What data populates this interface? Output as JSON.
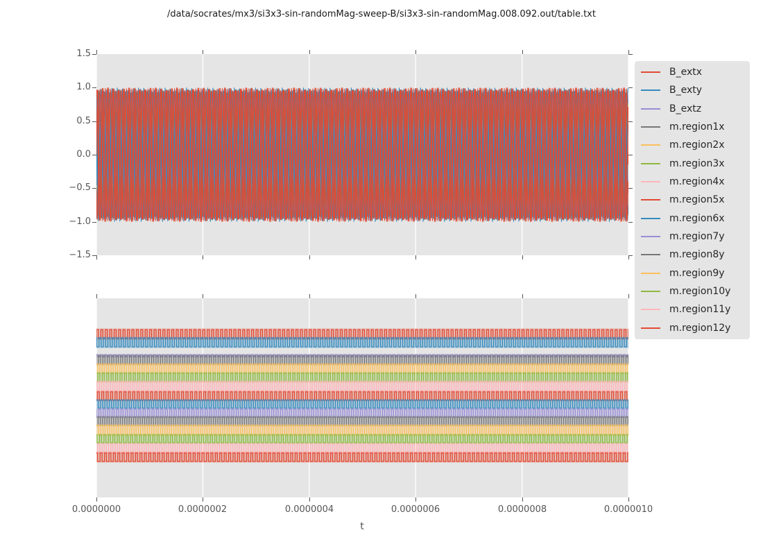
{
  "title": "/data/socrates/mx3/si3x3-sin-randomMag-sweep-B/si3x3-sin-randomMag.008.092.out/table.txt",
  "palette": [
    "#E24A33",
    "#348ABD",
    "#988ED5",
    "#777777",
    "#FBC15E",
    "#8EBA42",
    "#FFB5B8"
  ],
  "figure_style": {
    "axes_background": "#e5e5e5",
    "grid_color": "#ffffff",
    "tick_color": "#555555",
    "text_color": "#262626"
  },
  "legend": {
    "items": [
      {
        "label": "B_extx",
        "color": "#E24A33"
      },
      {
        "label": "B_exty",
        "color": "#348ABD"
      },
      {
        "label": "B_extz",
        "color": "#988ED5"
      },
      {
        "label": "m.region1x",
        "color": "#777777"
      },
      {
        "label": "m.region2x",
        "color": "#FBC15E"
      },
      {
        "label": "m.region3x",
        "color": "#8EBA42"
      },
      {
        "label": "m.region4x",
        "color": "#FFB5B8"
      },
      {
        "label": "m.region5x",
        "color": "#E24A33"
      },
      {
        "label": "m.region6x",
        "color": "#348ABD"
      },
      {
        "label": "m.region7y",
        "color": "#988ED5"
      },
      {
        "label": "m.region8y",
        "color": "#777777"
      },
      {
        "label": "m.region9y",
        "color": "#FBC15E"
      },
      {
        "label": "m.region10y",
        "color": "#8EBA42"
      },
      {
        "label": "m.region11y",
        "color": "#FFB5B8"
      },
      {
        "label": "m.region12y",
        "color": "#E24A33"
      }
    ]
  },
  "chart_data": [
    {
      "type": "line",
      "subplot": "top",
      "x_range": [
        0,
        1e-06
      ],
      "y_range": [
        -1.5,
        1.5
      ],
      "ytick_labels": [
        "1.5",
        "1.0",
        "0.5",
        "0.0",
        "−0.5",
        "−1.0",
        "−1.5"
      ],
      "grid": "vertical-only",
      "series": [
        {
          "name": "B_extx",
          "color": "#E24A33",
          "wave": "sine",
          "amplitude": 1.0,
          "cycles": 100,
          "phase": 0.0
        },
        {
          "name": "B_exty",
          "color": "#348ABD",
          "wave": "sine",
          "amplitude": 1.0,
          "cycles": 100,
          "phase": 2.1
        },
        {
          "name": "B_extz",
          "color": "#988ED5",
          "wave": "sine",
          "amplitude": 0.95,
          "cycles": 100,
          "phase": 4.2
        },
        {
          "name": "m.region1x",
          "color": "#777777",
          "wave": "sine",
          "amplitude": 0.97,
          "cycles": 100,
          "phase": 0.9
        },
        {
          "name": "m.region2x",
          "color": "#FBC15E",
          "wave": "sine",
          "amplitude": 0.78,
          "cycles": 100,
          "phase": 3.0
        },
        {
          "name": "m.region3x",
          "color": "#8EBA42",
          "wave": "sine",
          "amplitude": 0.9,
          "cycles": 100,
          "phase": 5.1
        },
        {
          "name": "m.region4x",
          "color": "#FFB5B8",
          "wave": "sine",
          "amplitude": 0.86,
          "cycles": 100,
          "phase": 1.6
        },
        {
          "name": "m.region5x",
          "color": "#E24A33",
          "wave": "sine",
          "amplitude": 0.99,
          "cycles": 100,
          "phase": 3.7
        },
        {
          "name": "m.region6x",
          "color": "#348ABD",
          "wave": "sine",
          "amplitude": 0.985,
          "cycles": 100,
          "phase": 5.8
        },
        {
          "name": "m.region7y",
          "color": "#988ED5",
          "wave": "sine",
          "amplitude": 0.95,
          "cycles": 100,
          "phase": 2.6
        },
        {
          "name": "m.region8y",
          "color": "#777777",
          "wave": "sine",
          "amplitude": 0.96,
          "cycles": 100,
          "phase": 4.7
        },
        {
          "name": "m.region9y",
          "color": "#FBC15E",
          "wave": "sine",
          "amplitude": 0.76,
          "cycles": 100,
          "phase": 0.4
        },
        {
          "name": "m.region10y",
          "color": "#8EBA42",
          "wave": "sine",
          "amplitude": 0.89,
          "cycles": 100,
          "phase": 2.9
        },
        {
          "name": "m.region11y",
          "color": "#FFB5B8",
          "wave": "sine",
          "amplitude": 0.87,
          "cycles": 100,
          "phase": 5.0
        },
        {
          "name": "m.region12y",
          "color": "#E24A33",
          "wave": "sine",
          "amplitude": 1.0,
          "cycles": 100,
          "phase": 1.2
        }
      ],
      "draw_order": [
        6,
        13,
        5,
        12,
        4,
        11,
        2,
        9,
        3,
        10,
        1,
        8,
        0,
        7,
        14
      ]
    },
    {
      "type": "line",
      "subplot": "bottom",
      "x_range": [
        0,
        1e-06
      ],
      "xtick_labels": [
        "0.0000000",
        "0.0000002",
        "0.0000004",
        "0.0000006",
        "0.0000008",
        "0.0000010"
      ],
      "xlabel": "t",
      "grid": "vertical-only",
      "note": "15 offset square-wave traces; vertical positions given as fractions of axes height from top",
      "series": [
        {
          "name": "B_extx",
          "color": "#E24A33",
          "wave": "square",
          "cycles": 120,
          "phase_frac": 0.0,
          "duty": 0.45,
          "y_top_frac": 0.157,
          "y_bot_frac": 0.202
        },
        {
          "name": "B_exty",
          "color": "#348ABD",
          "wave": "square",
          "cycles": 120,
          "phase_frac": 0.42,
          "duty": 0.5,
          "y_top_frac": 0.199,
          "y_bot_frac": 0.244
        },
        {
          "name": "B_extz",
          "color": "#988ED5",
          "wave": "square",
          "cycles": 120,
          "phase_frac": 0.13,
          "duty": 0.5,
          "y_top_frac": 0.284,
          "y_bot_frac": 0.293
        },
        {
          "name": "m.region1x",
          "color": "#777777",
          "wave": "square",
          "cycles": 120,
          "phase_frac": 0.55,
          "duty": 0.48,
          "y_top_frac": 0.289,
          "y_bot_frac": 0.331
        },
        {
          "name": "m.region2x",
          "color": "#FBC15E",
          "wave": "square",
          "cycles": 120,
          "phase_frac": 0.23,
          "duty": 0.52,
          "y_top_frac": 0.331,
          "y_bot_frac": 0.376
        },
        {
          "name": "m.region3x",
          "color": "#8EBA42",
          "wave": "square",
          "cycles": 120,
          "phase_frac": 0.68,
          "duty": 0.45,
          "y_top_frac": 0.376,
          "y_bot_frac": 0.418
        },
        {
          "name": "m.region4x",
          "color": "#FFB5B8",
          "wave": "square",
          "cycles": 120,
          "phase_frac": 0.35,
          "duty": 0.5,
          "y_top_frac": 0.418,
          "y_bot_frac": 0.463
        },
        {
          "name": "m.region5x",
          "color": "#E24A33",
          "wave": "square",
          "cycles": 120,
          "phase_frac": 0.8,
          "duty": 0.45,
          "y_top_frac": 0.47,
          "y_bot_frac": 0.512
        },
        {
          "name": "m.region6x",
          "color": "#348ABD",
          "wave": "square",
          "cycles": 120,
          "phase_frac": 0.1,
          "duty": 0.5,
          "y_top_frac": 0.512,
          "y_bot_frac": 0.551
        },
        {
          "name": "m.region7y",
          "color": "#988ED5",
          "wave": "square",
          "cycles": 120,
          "phase_frac": 0.47,
          "duty": 0.48,
          "y_top_frac": 0.557,
          "y_bot_frac": 0.596
        },
        {
          "name": "m.region8y",
          "color": "#777777",
          "wave": "square",
          "cycles": 120,
          "phase_frac": 0.62,
          "duty": 0.5,
          "y_top_frac": 0.596,
          "y_bot_frac": 0.638
        },
        {
          "name": "m.region9y",
          "color": "#FBC15E",
          "wave": "square",
          "cycles": 120,
          "phase_frac": 0.05,
          "duty": 0.52,
          "y_top_frac": 0.638,
          "y_bot_frac": 0.686
        },
        {
          "name": "m.region10y",
          "color": "#8EBA42",
          "wave": "square",
          "cycles": 120,
          "phase_frac": 0.3,
          "duty": 0.45,
          "y_top_frac": 0.686,
          "y_bot_frac": 0.725
        },
        {
          "name": "m.region11y",
          "color": "#FFB5B8",
          "wave": "square",
          "cycles": 120,
          "phase_frac": 0.75,
          "duty": 0.5,
          "y_top_frac": 0.732,
          "y_bot_frac": 0.777
        },
        {
          "name": "m.region12y",
          "color": "#E24A33",
          "wave": "square",
          "cycles": 120,
          "phase_frac": 0.18,
          "duty": 0.45,
          "y_top_frac": 0.777,
          "y_bot_frac": 0.819
        }
      ]
    }
  ]
}
